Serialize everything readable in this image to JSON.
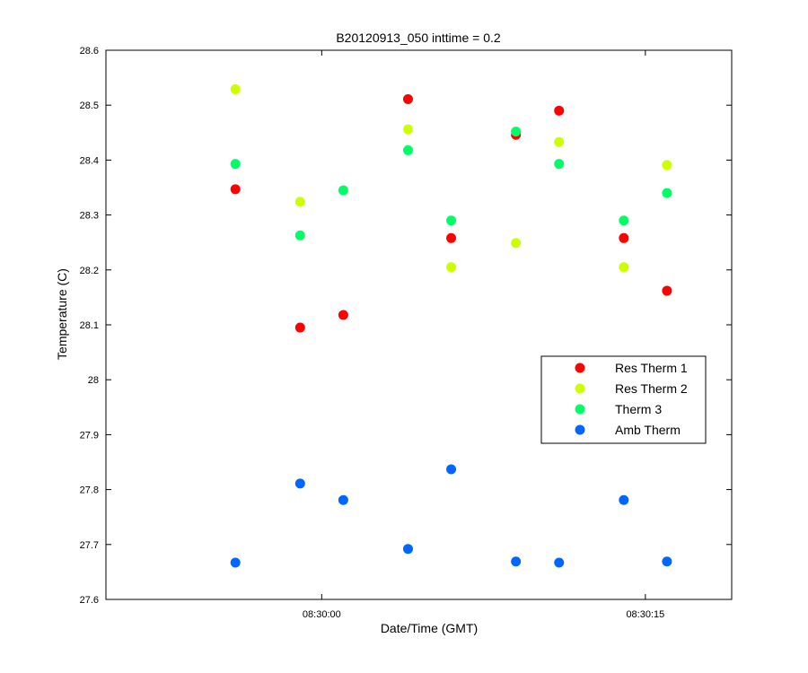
{
  "chart_data": {
    "type": "scatter",
    "title": "B20120913_050 inttime = 0.2",
    "xlabel": "Date/Time (GMT)",
    "ylabel": "Temperature (C)",
    "xlim": [
      "08:29:50",
      "08:30:19"
    ],
    "ylim": [
      27.6,
      28.6
    ],
    "x_ticks": [
      "08:30:00",
      "08:30:15"
    ],
    "y_ticks": [
      "27.6",
      "27.7",
      "27.8",
      "27.9",
      "28",
      "28.1",
      "28.2",
      "28.3",
      "28.4",
      "28.5",
      "28.6"
    ],
    "legend_position": "right",
    "grid": false,
    "x": [
      "08:29:56",
      "08:29:59",
      "08:30:01",
      "08:30:04",
      "08:30:06",
      "08:30:09",
      "08:30:11",
      "08:30:14",
      "08:30:16"
    ],
    "series": [
      {
        "name": "Res Therm 1",
        "color": "#ff0000",
        "values": [
          28.347,
          28.095,
          28.118,
          28.511,
          28.258,
          28.446,
          28.49,
          28.258,
          28.162
        ]
      },
      {
        "name": "Res Therm 2",
        "color": "#ccff00",
        "values": [
          28.529,
          28.324,
          null,
          28.456,
          28.205,
          28.249,
          28.433,
          28.205,
          28.391
        ]
      },
      {
        "name": "Therm 3",
        "color": "#00ff66",
        "values": [
          28.393,
          28.263,
          28.345,
          28.418,
          28.29,
          28.452,
          28.393,
          28.29,
          28.34
        ]
      },
      {
        "name": "Amb Therm",
        "color": "#0066ff",
        "values": [
          27.667,
          27.811,
          27.781,
          27.692,
          27.837,
          27.669,
          27.667,
          27.781,
          27.669
        ]
      }
    ]
  }
}
